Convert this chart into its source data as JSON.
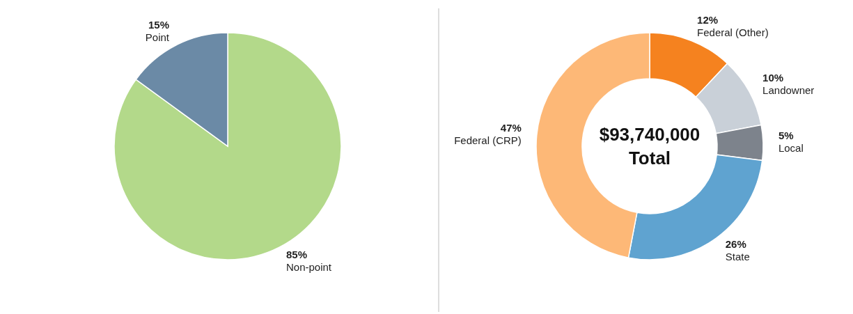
{
  "chart_data": [
    {
      "type": "pie",
      "categories": [
        "Non-point",
        "Point"
      ],
      "values": [
        85,
        15
      ],
      "colors": [
        "#b3d98a",
        "#6b8aa6"
      ],
      "value_labels": [
        "85%",
        "15%"
      ]
    },
    {
      "type": "donut",
      "categories": [
        "Federal (Other)",
        "Landowner",
        "Local",
        "State",
        "Federal (CRP)"
      ],
      "values": [
        12,
        10,
        5,
        26,
        47
      ],
      "colors": [
        "#f5821f",
        "#c9d0d8",
        "#7d838c",
        "#5fa3d0",
        "#fdb877"
      ],
      "value_labels": [
        "12%",
        "10%",
        "5%",
        "26%",
        "47%"
      ],
      "annotations": [
        "$93,740,000",
        "Total"
      ]
    }
  ]
}
